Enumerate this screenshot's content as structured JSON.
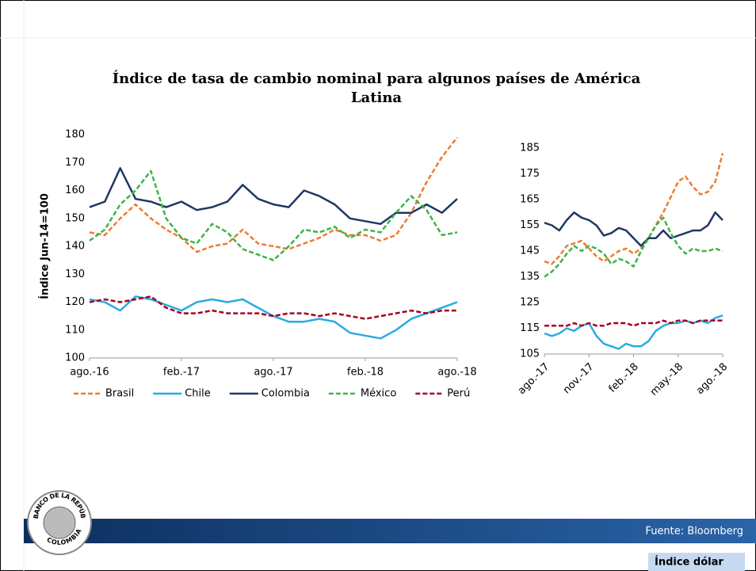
{
  "title": "Índice de tasa de cambio nominal  para algunos países de América Latina",
  "logo": {
    "top": "BANCO DE LA REPÚBLICA",
    "bottom": "COLOMBIA"
  },
  "footer": {
    "source": "Fuente: Bloomberg",
    "tab": "Índice dólar"
  },
  "chart_data": [
    {
      "type": "line",
      "y_label": "Índice Jun-14=100",
      "categories": [
        "ago.-16",
        null,
        null,
        null,
        null,
        null,
        "feb.-17",
        null,
        null,
        null,
        null,
        null,
        "ago.-17",
        null,
        null,
        null,
        null,
        null,
        "feb.-18",
        null,
        null,
        null,
        null,
        null,
        "ago.-18"
      ],
      "ylim": [
        100,
        180
      ],
      "yticks": [
        100,
        110,
        120,
        130,
        140,
        150,
        160,
        170,
        180
      ],
      "series": [
        {
          "name": "Brasil",
          "color": "#ed7d31",
          "dashed": true,
          "values": [
            145,
            144,
            150,
            155,
            150,
            146,
            143,
            138,
            140,
            141,
            146,
            141,
            140,
            139,
            141,
            143,
            146,
            144,
            144,
            142,
            144,
            152,
            163,
            172,
            179
          ]
        },
        {
          "name": "Chile",
          "color": "#29abe2",
          "dashed": false,
          "values": [
            121,
            120,
            117,
            122,
            121,
            119,
            117,
            120,
            121,
            120,
            121,
            118,
            115,
            113,
            113,
            114,
            113,
            109,
            108,
            107,
            110,
            114,
            116,
            118,
            120
          ]
        },
        {
          "name": "Colombia",
          "color": "#1f3864",
          "dashed": false,
          "values": [
            154,
            156,
            168,
            157,
            156,
            154,
            156,
            153,
            154,
            156,
            162,
            157,
            155,
            154,
            160,
            158,
            155,
            150,
            149,
            148,
            152,
            152,
            155,
            152,
            157
          ]
        },
        {
          "name": "México",
          "color": "#3cb44b",
          "dashed": true,
          "values": [
            142,
            146,
            155,
            160,
            167,
            150,
            143,
            141,
            148,
            145,
            139,
            137,
            135,
            140,
            146,
            145,
            147,
            143,
            146,
            145,
            152,
            158,
            153,
            144,
            145
          ]
        },
        {
          "name": "Perú",
          "color": "#a50021",
          "dashed": true,
          "values": [
            120,
            121,
            120,
            121,
            122,
            118,
            116,
            116,
            117,
            116,
            116,
            116,
            115,
            116,
            116,
            115,
            116,
            115,
            114,
            115,
            116,
            117,
            116,
            117,
            117
          ]
        }
      ]
    },
    {
      "type": "line",
      "categories": [
        "ago.-17",
        null,
        null,
        null,
        null,
        null,
        "nov.-17",
        null,
        null,
        null,
        null,
        null,
        "feb.-18",
        null,
        null,
        null,
        null,
        null,
        "may.-18",
        null,
        null,
        null,
        null,
        null,
        "ago.-18"
      ],
      "ylim": [
        105,
        185
      ],
      "yticks": [
        105,
        115,
        125,
        135,
        145,
        155,
        165,
        175,
        185
      ],
      "series": [
        {
          "name": "Brasil",
          "color": "#ed7d31",
          "dashed": true,
          "values": [
            141,
            140,
            143,
            147,
            148,
            149,
            146,
            143,
            141,
            143,
            145,
            146,
            144,
            146,
            150,
            155,
            160,
            166,
            172,
            174,
            170,
            167,
            168,
            172,
            183
          ]
        },
        {
          "name": "Chile",
          "color": "#29abe2",
          "dashed": false,
          "values": [
            113,
            112,
            113,
            115,
            114,
            116,
            117,
            112,
            109,
            108,
            107,
            109,
            108,
            108,
            110,
            114,
            116,
            117,
            117,
            118,
            117,
            118,
            117,
            119,
            120
          ]
        },
        {
          "name": "Colombia",
          "color": "#1f3864",
          "dashed": false,
          "values": [
            156,
            155,
            153,
            157,
            160,
            158,
            157,
            155,
            151,
            152,
            154,
            153,
            150,
            147,
            150,
            150,
            153,
            150,
            151,
            152,
            153,
            153,
            155,
            160,
            157
          ]
        },
        {
          "name": "México",
          "color": "#3cb44b",
          "dashed": true,
          "values": [
            135,
            137,
            140,
            144,
            147,
            145,
            147,
            146,
            144,
            140,
            142,
            141,
            139,
            145,
            150,
            155,
            158,
            152,
            147,
            144,
            146,
            145,
            145,
            146,
            145
          ]
        },
        {
          "name": "Perú",
          "color": "#a50021",
          "dashed": true,
          "values": [
            116,
            116,
            116,
            116,
            117,
            116,
            117,
            116,
            116,
            117,
            117,
            117,
            116,
            117,
            117,
            117,
            118,
            117,
            118,
            118,
            117,
            118,
            118,
            118,
            118
          ]
        }
      ]
    }
  ]
}
